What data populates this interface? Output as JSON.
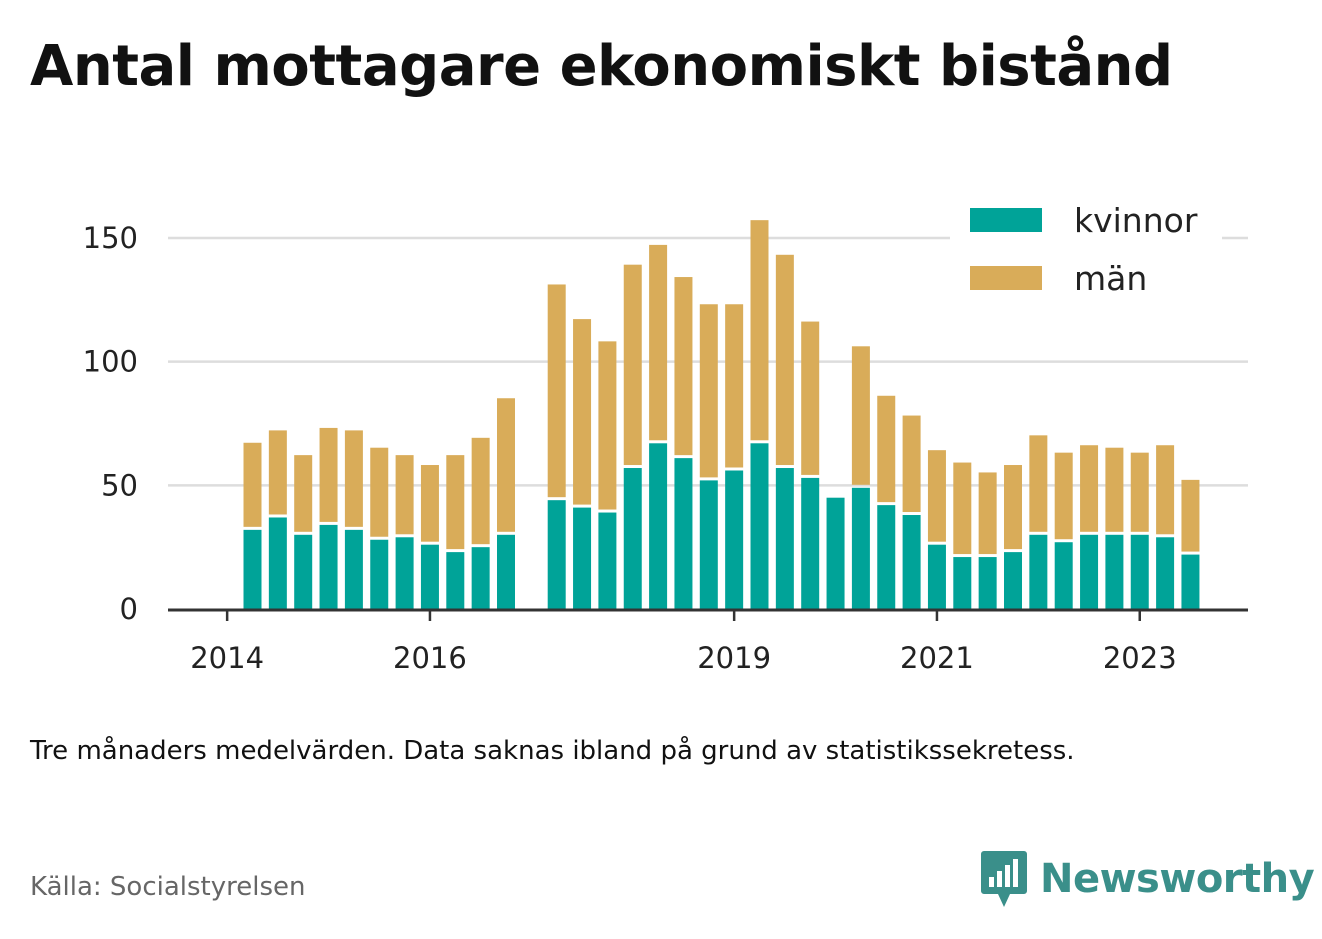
{
  "chart_data": {
    "type": "bar",
    "stacked": true,
    "title": "Antal mottagare ekonomiskt bistånd",
    "xlabel": "",
    "ylabel": "",
    "ylim": [
      0,
      160
    ],
    "y_ticks": [
      0,
      50,
      100,
      150
    ],
    "x_tick_labels": [
      {
        "label": "2014",
        "index": -1
      },
      {
        "label": "2016",
        "index": 7
      },
      {
        "label": "2019",
        "index": 19
      },
      {
        "label": "2021",
        "index": 27
      },
      {
        "label": "2023",
        "index": 35
      }
    ],
    "grid": true,
    "legend_position": "top-right",
    "series": [
      {
        "name": "kvinnor",
        "color": "#00a398",
        "values": [
          32,
          37,
          30,
          34,
          32,
          28,
          29,
          26,
          23,
          25,
          30,
          null,
          44,
          41,
          39,
          57,
          67,
          61,
          52,
          56,
          67,
          57,
          53,
          45,
          49,
          42,
          38,
          26,
          21,
          21,
          23,
          30,
          27,
          30,
          30,
          30,
          29,
          22
        ]
      },
      {
        "name": "män",
        "color": "#d9ac59",
        "values": [
          34,
          34,
          31,
          38,
          39,
          36,
          32,
          31,
          38,
          43,
          54,
          null,
          86,
          75,
          68,
          81,
          79,
          72,
          70,
          66,
          89,
          85,
          62,
          0,
          56,
          43,
          39,
          37,
          37,
          33,
          34,
          39,
          35,
          35,
          34,
          32,
          36,
          29
        ]
      }
    ]
  },
  "note": "Tre månaders medelvärden. Data saknas ibland på grund av statistikssekretess.",
  "source": "Källa: Socialstyrelsen",
  "brand": {
    "name": "Newsworthy",
    "icon": "bar-chart-speech-bubble-icon",
    "color": "#3a8f8a"
  }
}
